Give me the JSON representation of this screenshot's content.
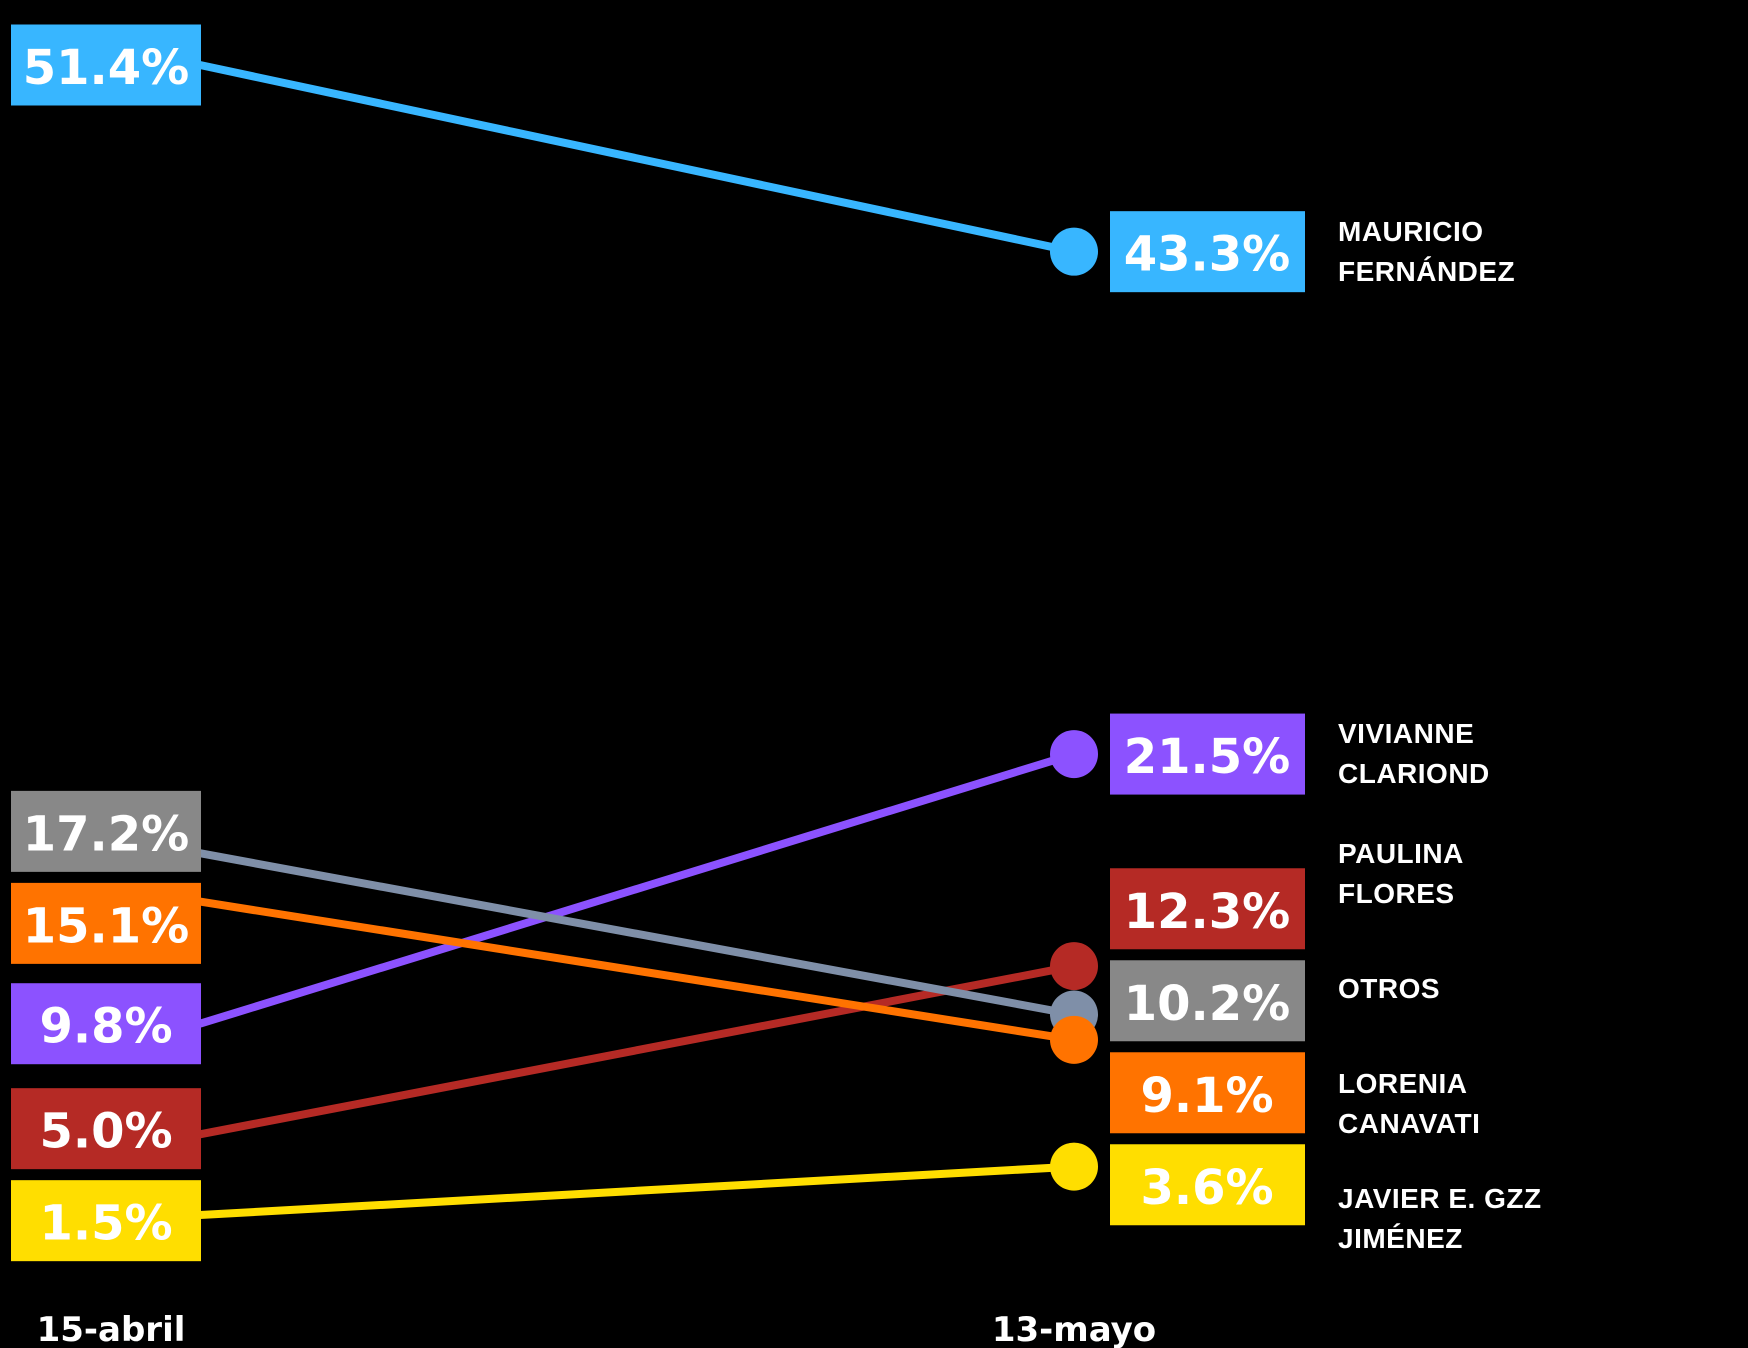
{
  "chart_data": {
    "type": "slope",
    "categories": [
      "15-abril",
      "13-mayo"
    ],
    "series": [
      {
        "name": "MAURICIO\nFERNÁNDEZ",
        "color": "#38b6ff",
        "values": [
          51.4,
          43.3
        ],
        "value_labels": [
          "51.4%",
          "43.3%"
        ]
      },
      {
        "name": "VIVIANNE\nCLARIOND",
        "color": "#8c52ff",
        "values": [
          9.8,
          21.5
        ],
        "value_labels": [
          "9.8%",
          "21.5%"
        ]
      },
      {
        "name": "PAULINA\nFLORES",
        "color": "#b52a25",
        "values": [
          5.0,
          12.3
        ],
        "value_labels": [
          "5.0%",
          "12.3%"
        ]
      },
      {
        "name": "OTROS",
        "color": "#888888",
        "line_color": "#7f8fa8",
        "values": [
          17.2,
          10.2
        ],
        "value_labels": [
          "17.2%",
          "10.2%"
        ]
      },
      {
        "name": "LORENIA\nCANAVATI",
        "color": "#ff7300",
        "values": [
          15.1,
          9.1
        ],
        "value_labels": [
          "15.1%",
          "9.1%"
        ]
      },
      {
        "name": "JAVIER E. GZZ\nJIMÉNEZ",
        "color": "#ffde00",
        "values": [
          1.5,
          3.6
        ],
        "value_labels": [
          "1.5%",
          "3.6%"
        ]
      }
    ]
  }
}
